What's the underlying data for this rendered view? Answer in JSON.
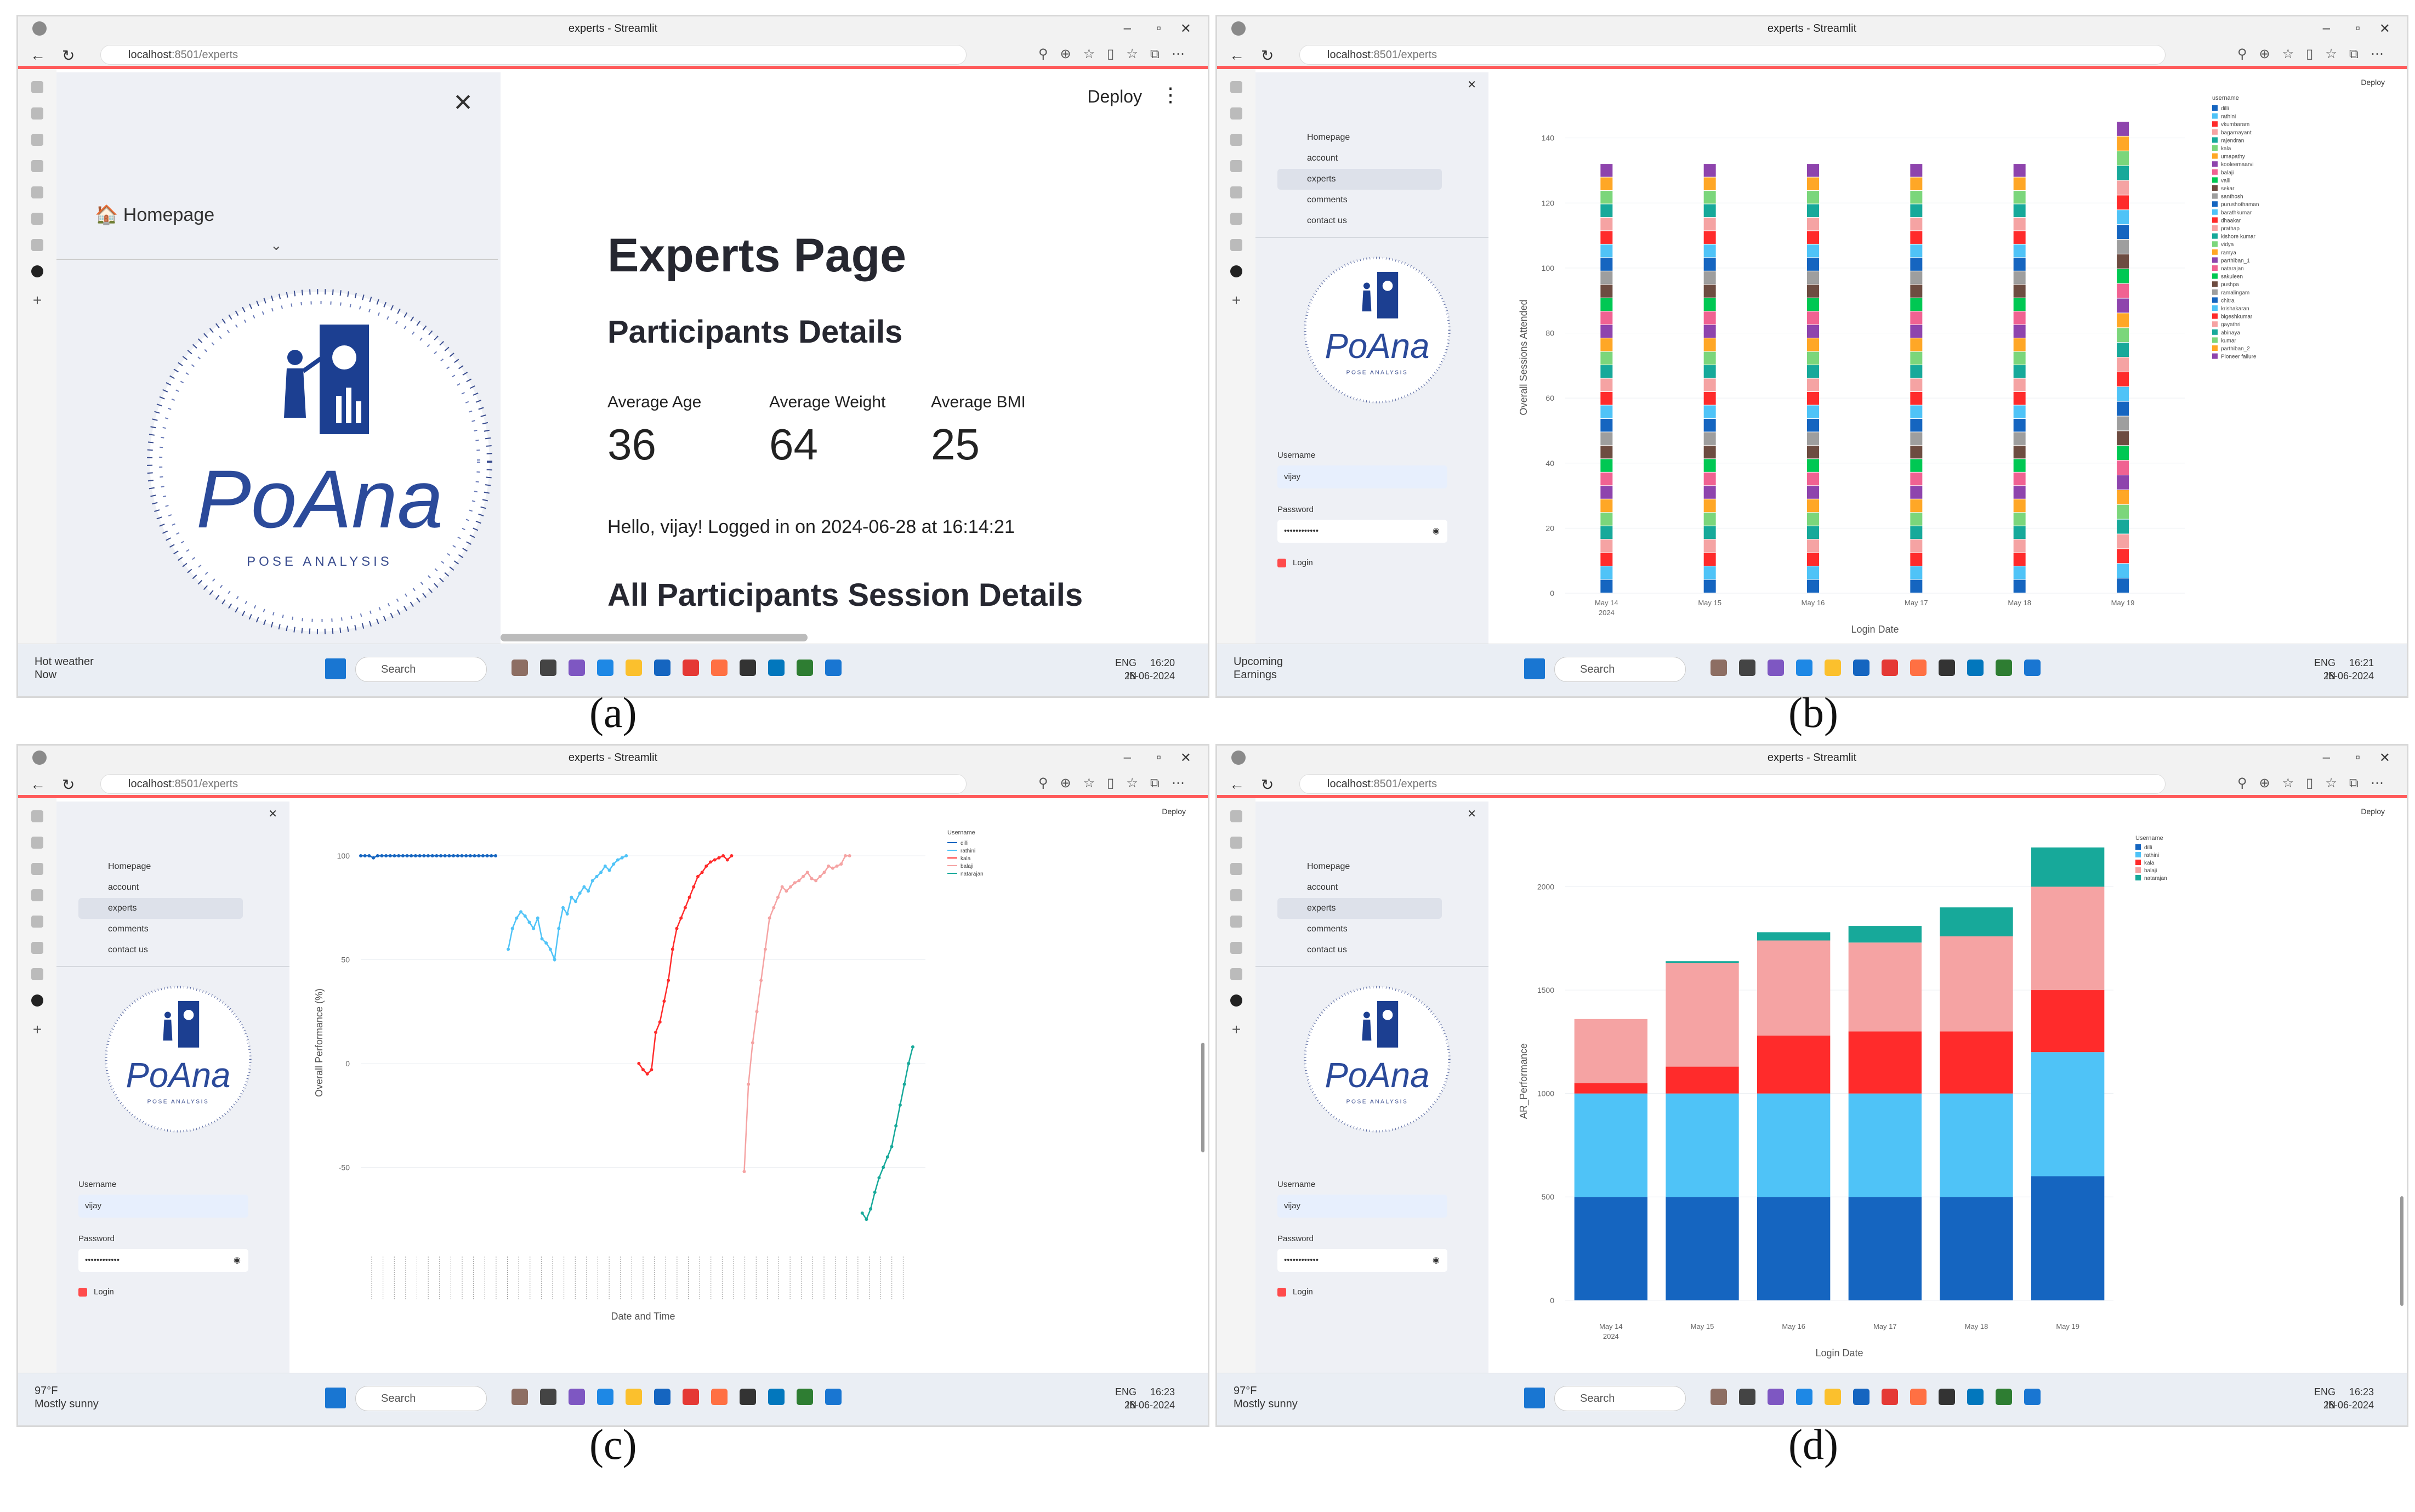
{
  "browser": {
    "tab_title": "experts - Streamlit",
    "url_host": "localhost",
    "url_rest": ":8501/experts"
  },
  "sidebar": {
    "nav": [
      {
        "label": "Homepage"
      },
      {
        "label": "account"
      },
      {
        "label": "experts"
      },
      {
        "label": "comments"
      },
      {
        "label": "contact us"
      }
    ],
    "logo_text": "PoAna",
    "logo_subtitle": "POSE ANALYSIS",
    "username_label": "Username",
    "username_value": "vijay",
    "password_label": "Password",
    "password_value": "••••••••••••",
    "login_label": "Login"
  },
  "deploy_label": "Deploy",
  "panel_a": {
    "caption": "(a)",
    "page_title": "Experts Page",
    "section1": "Participants Details",
    "metrics": [
      {
        "label": "Average Age",
        "value": "36"
      },
      {
        "label": "Average Weight",
        "value": "64"
      },
      {
        "label": "Average BMI",
        "value": "25"
      }
    ],
    "greeting": "Hello, vijay! Logged in on 2024-06-28 at 16:14:21",
    "section2": "All Participants Session Details",
    "taskbar": {
      "weather_line1": "Hot weather",
      "weather_line2": "Now",
      "time": "16:20",
      "date": "28-06-2024"
    }
  },
  "panel_b": {
    "caption": "(b)",
    "taskbar": {
      "weather_line1": "Upcoming",
      "weather_line2": "Earnings",
      "time": "16:21",
      "date": "28-06-2024"
    }
  },
  "panel_c": {
    "caption": "(c)",
    "taskbar": {
      "weather_line1": "97°F",
      "weather_line2": "Mostly sunny",
      "time": "16:23",
      "date": "28-06-2024"
    }
  },
  "panel_d": {
    "caption": "(d)",
    "taskbar": {
      "weather_line1": "97°F",
      "weather_line2": "Mostly sunny",
      "time": "16:23",
      "date": "28-06-2024"
    }
  },
  "taskbar_common": {
    "search_label": "Search",
    "lang1": "ENG",
    "lang2": "IN"
  },
  "chart_data": [
    {
      "id": "b",
      "type": "bar",
      "stacked": true,
      "xlabel": "Login Date",
      "ylabel": "Overall Sessions Attended",
      "categories": [
        "May 14\n2024",
        "May 15",
        "May 16",
        "May 17",
        "May 18",
        "May 19"
      ],
      "yticks": [
        0,
        20,
        40,
        60,
        80,
        100,
        120,
        140
      ],
      "ylim": [
        0,
        145
      ],
      "totals": [
        132,
        132,
        132,
        132,
        132,
        145
      ],
      "legend_title": "username",
      "legend": [
        "dilli",
        "rathini",
        "vkumbaram",
        "bagarnayant",
        "rajendran",
        "kala",
        "umapathy",
        "kooleemaarvi",
        "balaji",
        "valli",
        "sekar",
        "santhosh",
        "purushothaman",
        "barathkumar",
        "dhaakar",
        "prathap",
        "kishore kumar",
        "vidya",
        "ramya",
        "parthiban_1",
        "natarajan",
        "sakuleen",
        "pushpa",
        "ramalingam",
        "chitra",
        "krishakaran",
        "bigeshkumar",
        "gayathri",
        "abinaya",
        "kumar",
        "parthiban_2",
        "Pioneer failure"
      ]
    },
    {
      "id": "c",
      "type": "line",
      "xlabel": "Date and Time",
      "ylabel": "Overall Performance (%)",
      "yticks": [
        -50,
        0,
        50,
        100
      ],
      "ylim": [
        -85,
        105
      ],
      "legend_title": "Username",
      "series": [
        {
          "name": "dilli",
          "color": "#1565c0",
          "values": [
            100,
            100,
            100,
            99,
            100,
            100,
            100,
            100,
            100,
            100,
            100,
            100,
            100,
            100,
            100,
            100,
            100,
            100,
            100,
            100,
            100,
            100,
            100,
            100,
            100,
            100,
            100,
            100,
            100,
            100,
            100,
            100,
            100
          ]
        },
        {
          "name": "rathini",
          "color": "#4fc3f7",
          "values": [
            55,
            65,
            70,
            73,
            71,
            68,
            65,
            70,
            60,
            58,
            55,
            50,
            65,
            75,
            72,
            80,
            78,
            82,
            85,
            83,
            88,
            90,
            92,
            95,
            93,
            96,
            98,
            99,
            100
          ]
        },
        {
          "name": "kala",
          "color": "#ff2b2b",
          "values": [
            0,
            -3,
            -5,
            -3,
            15,
            20,
            30,
            40,
            55,
            65,
            70,
            75,
            80,
            85,
            90,
            92,
            95,
            97,
            98,
            99,
            100,
            98,
            100
          ]
        },
        {
          "name": "balaji",
          "color": "#f5a3a3",
          "values": [
            -52,
            -10,
            10,
            25,
            40,
            55,
            70,
            75,
            80,
            85,
            83,
            85,
            87,
            88,
            90,
            92,
            89,
            88,
            90,
            92,
            95,
            94,
            95,
            96,
            100,
            100
          ]
        },
        {
          "name": "natarajan",
          "color": "#17a99a",
          "values": [
            -72,
            -75,
            -70,
            -62,
            -55,
            -50,
            -45,
            -40,
            -30,
            -20,
            -10,
            0,
            8
          ]
        }
      ]
    },
    {
      "id": "d",
      "type": "bar",
      "stacked": true,
      "xlabel": "Login Date",
      "ylabel": "AR_Performance",
      "categories": [
        "May 14\n2024",
        "May 15",
        "May 16",
        "May 17",
        "May 18",
        "May 19"
      ],
      "yticks": [
        0,
        500,
        1000,
        1500,
        2000
      ],
      "ylim": [
        -80,
        2200
      ],
      "legend_title": "Username",
      "series": [
        {
          "name": "dilli",
          "color": "#1565c0",
          "values": [
            500,
            500,
            500,
            500,
            500,
            600
          ]
        },
        {
          "name": "rathini",
          "color": "#4fc3f7",
          "values": [
            500,
            500,
            500,
            500,
            500,
            600
          ]
        },
        {
          "name": "kala",
          "color": "#ff2b2b",
          "values": [
            50,
            130,
            280,
            300,
            300,
            300
          ]
        },
        {
          "name": "balaji",
          "color": "#f5a3a3",
          "values": [
            310,
            500,
            460,
            430,
            460,
            500
          ]
        },
        {
          "name": "natarajan",
          "color": "#17a99a",
          "values": [
            0,
            10,
            40,
            80,
            140,
            190
          ]
        }
      ]
    }
  ]
}
